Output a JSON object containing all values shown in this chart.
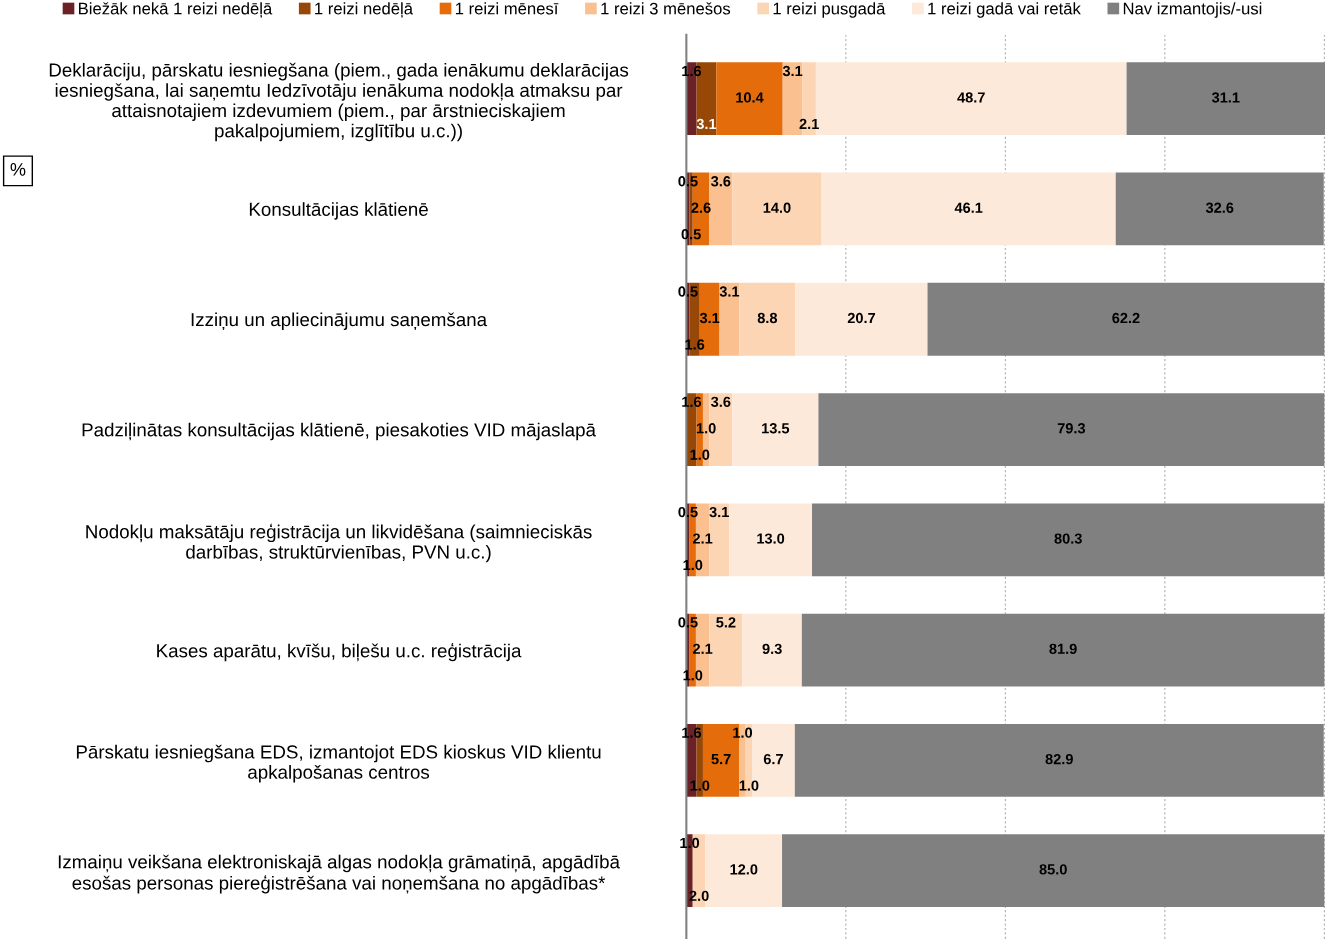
{
  "chart_data": {
    "type": "bar",
    "orientation": "horizontal",
    "stacked": true,
    "categories": [
      "Deklarāciju, pārskatu iesniegšana (piem., gada ienākumu deklarācijas\niesniegšana, lai saņemtu Iedzīvotāju ienākuma nodokļa atmaksu par\nattaisnotajiem izdevumiem (piem., par ārstnieciskajiem\npakalpojumiem, izglītību u.c.))",
      "Konsultācijas klātienē",
      "Izziņu un apliecinājumu saņemšana",
      "Padziļinātas konsultācijas klātienē, piesakoties VID mājaslapā",
      "Nodokļu maksātāju reģistrācija un likvidēšana (saimnieciskās\ndarbības, struktūrvienības, PVN u.c.)",
      "Kases aparātu, kvīšu, biļešu u.c. reģistrācija",
      "Pārskatu iesniegšana EDS, izmantojot EDS kioskus VID klientu\napkalpošanas centros",
      "Izmaiņu veikšana elektroniskajā algas nodokļa grāmatiņā, apgādībā\nesošas personas piereģistrēšana vai noņemšana no apgādības*"
    ],
    "series": [
      {
        "name": "Biežāk nekā 1 reizi nedēļā",
        "color": "#6b2226",
        "values": [
          1.6,
          0.5,
          0.5,
          null,
          0.5,
          0.5,
          1.6,
          1.0
        ],
        "value_labels": [
          "1.6",
          "0.5",
          "0.5",
          null,
          "0.5",
          "0.5",
          "1.6",
          "1.0"
        ]
      },
      {
        "name": "1 reizi nedēļā",
        "color": "#974706",
        "values": [
          3.1,
          0.5,
          1.6,
          1.6,
          null,
          null,
          1.0,
          null
        ],
        "value_labels": [
          "3.1",
          "0.5",
          "1.6",
          "1.6",
          null,
          null,
          "1.0",
          null
        ]
      },
      {
        "name": "1 reizi mēnesī",
        "color": "#e46c0a",
        "values": [
          10.4,
          2.6,
          3.1,
          1.0,
          1.0,
          1.0,
          5.7,
          null
        ],
        "value_labels": [
          "10.4",
          "2.6",
          "3.1",
          "1.0",
          "1.0",
          "1.0",
          "5.7",
          null
        ]
      },
      {
        "name": "1 reizi 3 mēnešos",
        "color": "#fac090",
        "values": [
          3.1,
          3.6,
          3.1,
          1.0,
          2.1,
          2.1,
          1.0,
          null
        ],
        "value_labels": [
          "3.1",
          "3.6",
          "3.1",
          "1.0",
          "2.1",
          "2.1",
          "1.0",
          null
        ]
      },
      {
        "name": "1 reizi pusgadā",
        "color": "#fcd5b5",
        "values": [
          2.1,
          14.0,
          8.8,
          3.6,
          3.1,
          5.2,
          1.0,
          2.0
        ],
        "value_labels": [
          "2.1",
          "14.0",
          "8.8",
          "3.6",
          "3.1",
          "5.2",
          "1.0",
          "2.0"
        ]
      },
      {
        "name": "1 reizi gadā vai retāk",
        "color": "#fde9d9",
        "values": [
          48.7,
          46.1,
          20.7,
          13.5,
          13.0,
          9.3,
          6.7,
          12.0
        ],
        "value_labels": [
          "48.7",
          "46.1",
          "20.7",
          "13.5",
          "13.0",
          "9.3",
          "6.7",
          "12.0"
        ]
      },
      {
        "name": "Nav izmantojis/-usi",
        "color": "#808080",
        "values": [
          31.1,
          32.6,
          62.2,
          79.3,
          80.3,
          81.9,
          82.9,
          85.0
        ],
        "value_labels": [
          "31.1",
          "32.6",
          "62.2",
          "79.3",
          "80.3",
          "81.9",
          "82.9",
          "85.0"
        ]
      }
    ],
    "xlim": [
      0,
      100.1
    ],
    "xticks": [
      {
        "value": 0,
        "label": null
      },
      {
        "value": 25,
        "label": null
      },
      {
        "value": 50,
        "label": null
      },
      {
        "value": 75,
        "label": null
      },
      {
        "value": 100,
        "label": null
      }
    ],
    "tick_labels": "y",
    "grid": "x",
    "legend": "top",
    "annotations": [
      "%"
    ]
  }
}
